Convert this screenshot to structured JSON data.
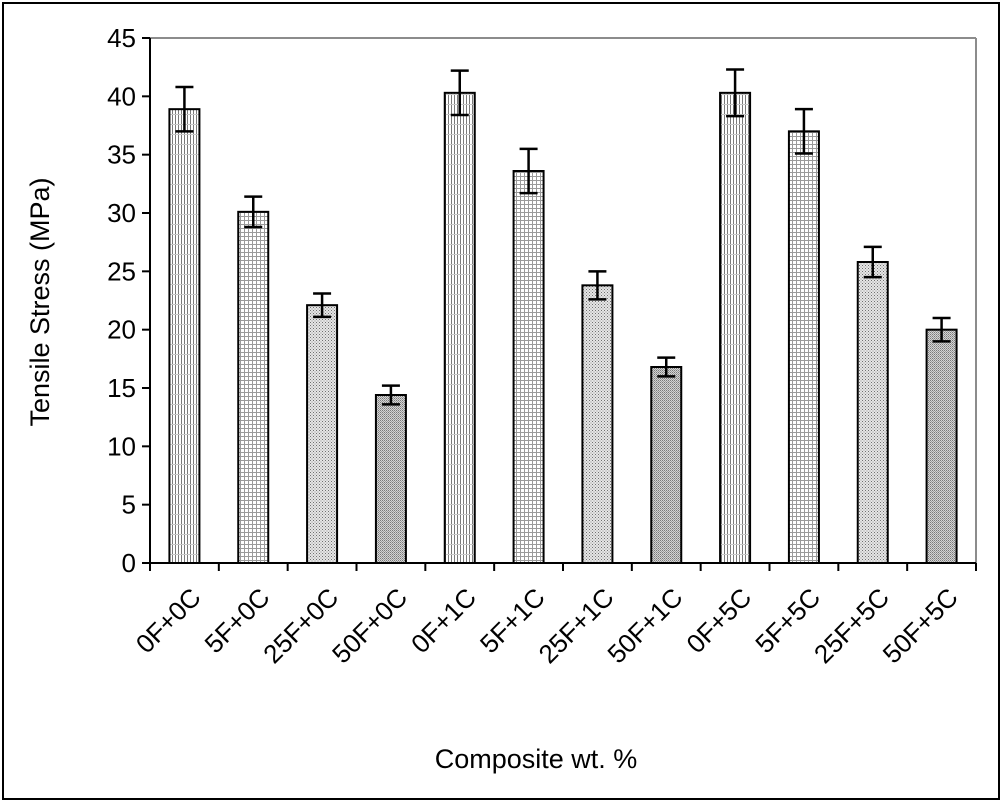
{
  "chart_data": {
    "type": "bar",
    "title": "",
    "xlabel": "Composite wt. %",
    "ylabel": "Tensile Stress (MPa)",
    "ylim": [
      0,
      45
    ],
    "yticks": [
      0,
      5,
      10,
      15,
      20,
      25,
      30,
      35,
      40,
      45
    ],
    "grid": false,
    "legend": "none",
    "categories": [
      "0F+0C",
      "5F+0C",
      "25F+0C",
      "50F+0C",
      "0F+1C",
      "5F+1C",
      "25F+1C",
      "50F+1C",
      "0F+5C",
      "5F+5C",
      "25F+5C",
      "50F+5C"
    ],
    "values": [
      38.9,
      30.1,
      22.1,
      14.4,
      40.3,
      33.6,
      23.8,
      16.8,
      40.3,
      37.0,
      25.8,
      20.0
    ],
    "errors": [
      1.9,
      1.3,
      1.0,
      0.8,
      1.9,
      1.9,
      1.2,
      0.8,
      2.0,
      1.9,
      1.3,
      1.0
    ],
    "fill_patterns": [
      "vertical",
      "grid-fine",
      "dots",
      "dots-dense",
      "vertical",
      "grid-fine",
      "dots",
      "dots-dense",
      "vertical",
      "grid-fine",
      "dots",
      "dots-dense"
    ]
  },
  "colors": {
    "axis": "#000000",
    "plot_border": "#8c8c8c",
    "bar_outline": "#000000",
    "pattern_ink": "#7a7a7a"
  }
}
